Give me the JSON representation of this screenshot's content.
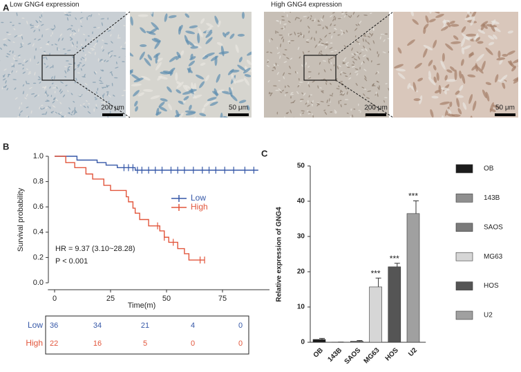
{
  "panel_labels": [
    "A",
    "B",
    "C"
  ],
  "images": {
    "low_label": "Low GNG4 expression",
    "high_label": "High GNG4 expression",
    "scale_bars": [
      "200 μm",
      "50 μm",
      "200 μm",
      "50 μm"
    ]
  },
  "chart_data": [
    {
      "type": "survival",
      "xlabel": "Time(m)",
      "ylabel": "Survival probability",
      "xlim": [
        -3,
        96
      ],
      "ylim": [
        0,
        1.0
      ],
      "xticks": [
        0,
        25,
        50,
        75
      ],
      "yticks": [
        {
          "value": 0,
          "label": "0.0"
        },
        0.2,
        0.4,
        0.6,
        0.8,
        {
          "value": 1,
          "label": "1.0"
        }
      ],
      "legend": "right",
      "annotations": [
        "HR = 9.37 (3.10~28.28)",
        "P < 0.001"
      ],
      "series": [
        {
          "name": "Low",
          "color": "#3557a7",
          "x": [
            0,
            10,
            19,
            23,
            28,
            36,
            91
          ],
          "values": [
            1,
            0.97,
            0.95,
            0.93,
            0.91,
            0.89,
            0.89
          ],
          "censor_x": [
            31,
            33,
            35,
            37,
            39,
            42,
            45,
            48,
            52,
            55,
            58,
            62,
            66,
            69,
            72,
            76,
            80,
            85,
            89
          ],
          "censor_y": [
            0.91,
            0.91,
            0.91,
            0.89,
            0.89,
            0.89,
            0.89,
            0.89,
            0.89,
            0.89,
            0.89,
            0.89,
            0.89,
            0.89,
            0.89,
            0.89,
            0.89,
            0.89,
            0.89
          ]
        },
        {
          "name": "High",
          "color": "#e2553b",
          "x": [
            0,
            5,
            9,
            14,
            17,
            22,
            25,
            32,
            33,
            35,
            36,
            38,
            42,
            47,
            49,
            51,
            55,
            58,
            60,
            67
          ],
          "values": [
            1,
            0.95,
            0.91,
            0.86,
            0.82,
            0.77,
            0.73,
            0.68,
            0.64,
            0.59,
            0.55,
            0.5,
            0.45,
            0.41,
            0.36,
            0.32,
            0.27,
            0.23,
            0.18,
            0.18
          ],
          "censor_x": [
            46,
            49,
            53,
            65,
            67
          ],
          "censor_y": [
            0.45,
            0.36,
            0.32,
            0.18,
            0.18
          ]
        }
      ],
      "risk_table": {
        "rows": [
          {
            "name": "Low",
            "counts": [
              36,
              34,
              21,
              4,
              0
            ]
          },
          {
            "name": "High",
            "counts": [
              22,
              16,
              5,
              0,
              0
            ]
          }
        ]
      }
    },
    {
      "type": "bar",
      "ylabel": "Relative expression of GNG4",
      "categories": [
        "OB",
        "143B",
        "SAOS",
        "MG63",
        "HOS",
        "U2"
      ],
      "values": [
        0.8,
        0.05,
        0.3,
        15.7,
        21.4,
        36.5
      ],
      "errors": [
        0.3,
        0,
        0.2,
        2.5,
        1.0,
        3.6
      ],
      "significance": [
        null,
        null,
        null,
        "***",
        "***",
        "***"
      ],
      "colors": [
        "#1c1c1c",
        "#8f8f8f",
        "#7b7b7b",
        "#d6d6d6",
        "#555555",
        "#a0a0a0"
      ],
      "ylim": [
        0,
        50
      ],
      "yticks": [
        0,
        10,
        20,
        30,
        40,
        50
      ],
      "legend": "right"
    }
  ]
}
